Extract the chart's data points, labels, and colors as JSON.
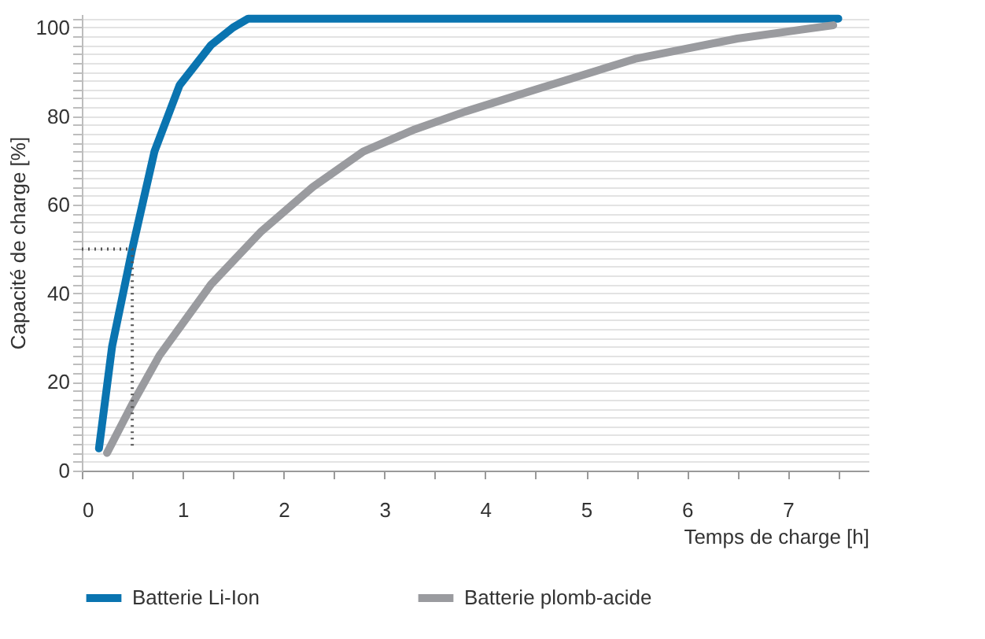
{
  "chart_data": {
    "type": "line",
    "xlabel": "Temps de charge [h]",
    "ylabel": "Capacité de charge [%]",
    "xlim": [
      0,
      7.8
    ],
    "ylim": [
      0,
      103
    ],
    "xticks": [
      0,
      {
        "value": 0.5,
        "label": null
      },
      1,
      {
        "value": 1.5,
        "label": null
      },
      2,
      {
        "value": 2.5,
        "label": null
      },
      3,
      {
        "value": 3.5,
        "label": null
      },
      4,
      {
        "value": 4.5,
        "label": null
      },
      5,
      {
        "value": 5.5,
        "label": null
      },
      6,
      {
        "value": 6.5,
        "label": null
      },
      7,
      {
        "value": 7.5,
        "label": null
      }
    ],
    "yticks": [
      0,
      {
        "value": 2,
        "label": null
      },
      {
        "value": 4,
        "label": null
      },
      {
        "value": 6,
        "label": null
      },
      {
        "value": 8,
        "label": null
      },
      {
        "value": 10,
        "label": null
      },
      {
        "value": 12,
        "label": null
      },
      {
        "value": 14,
        "label": null
      },
      {
        "value": 16,
        "label": null
      },
      {
        "value": 18,
        "label": null
      },
      20,
      {
        "value": 22,
        "label": null
      },
      {
        "value": 24,
        "label": null
      },
      {
        "value": 26,
        "label": null
      },
      {
        "value": 28,
        "label": null
      },
      {
        "value": 30,
        "label": null
      },
      {
        "value": 32,
        "label": null
      },
      {
        "value": 34,
        "label": null
      },
      {
        "value": 36,
        "label": null
      },
      {
        "value": 38,
        "label": null
      },
      40,
      {
        "value": 42,
        "label": null
      },
      {
        "value": 44,
        "label": null
      },
      {
        "value": 46,
        "label": null
      },
      {
        "value": 48,
        "label": null
      },
      {
        "value": 50,
        "label": null
      },
      {
        "value": 52,
        "label": null
      },
      {
        "value": 54,
        "label": null
      },
      {
        "value": 56,
        "label": null
      },
      {
        "value": 58,
        "label": null
      },
      60,
      {
        "value": 62,
        "label": null
      },
      {
        "value": 64,
        "label": null
      },
      {
        "value": 66,
        "label": null
      },
      {
        "value": 68,
        "label": null
      },
      {
        "value": 70,
        "label": null
      },
      {
        "value": 72,
        "label": null
      },
      {
        "value": 74,
        "label": null
      },
      {
        "value": 76,
        "label": null
      },
      {
        "value": 78,
        "label": null
      },
      80,
      {
        "value": 82,
        "label": null
      },
      {
        "value": 84,
        "label": null
      },
      {
        "value": 86,
        "label": null
      },
      {
        "value": 88,
        "label": null
      },
      {
        "value": 90,
        "label": null
      },
      {
        "value": 92,
        "label": null
      },
      {
        "value": 94,
        "label": null
      },
      {
        "value": 96,
        "label": null
      },
      {
        "value": 98,
        "label": null
      },
      100,
      {
        "value": 102,
        "label": null
      }
    ],
    "grid": "y",
    "legend": "bottom",
    "marker": "none",
    "line_style": "solid",
    "series": [
      {
        "name": "Batterie Li-Ion",
        "color": "#0a74b0",
        "x": [
          0.17,
          0.3,
          0.5,
          0.72,
          0.97,
          1.28,
          1.5,
          1.65,
          7.5
        ],
        "values": [
          5,
          28,
          50,
          72,
          87,
          96,
          100,
          102,
          102
        ]
      },
      {
        "name": "Batterie plomb-acide",
        "color": "#9a9b9f",
        "x": [
          0.25,
          0.5,
          0.77,
          1.28,
          1.78,
          2.29,
          2.79,
          3.3,
          3.8,
          4.5,
          5.5,
          6.5,
          7.45
        ],
        "values": [
          4,
          15,
          26,
          42,
          54,
          64,
          72,
          77,
          81,
          86,
          93,
          97.5,
          100.5
        ]
      },
      {
        "color": "#555555",
        "line_style": "dotted",
        "x": [
          0,
          0.5,
          0.5
        ],
        "values": [
          50,
          50,
          5
        ]
      }
    ]
  }
}
